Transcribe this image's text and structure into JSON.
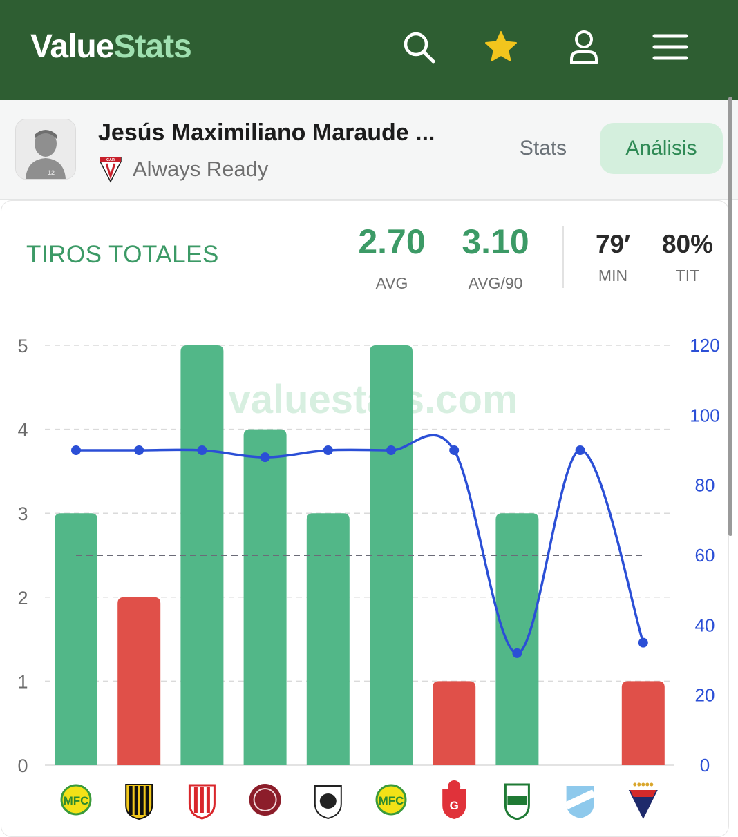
{
  "app": {
    "brand_left": "Value",
    "brand_right": "Stats",
    "icons": [
      "search-icon",
      "star-icon",
      "user-icon",
      "menu-icon"
    ],
    "colors": {
      "header_bg": "#2e5e32",
      "brand_accent": "#9fe0b0",
      "star": "#f2c51d"
    }
  },
  "player": {
    "name": "Jesús Maximiliano Maraude ...",
    "team": "Always Ready",
    "team_crest_text": "CAR",
    "tabs": [
      {
        "label": "Stats",
        "active": false
      },
      {
        "label": "Análisis",
        "active": true
      }
    ]
  },
  "stat": {
    "title": "TIROS TOTALES",
    "avg_value": "2.70",
    "avg_label": "AVG",
    "avg90_value": "3.10",
    "avg90_label": "AVG/90",
    "min_value": "79′",
    "min_label": "MIN",
    "tit_value": "80%",
    "tit_label": "TIT"
  },
  "chart_data": {
    "type": "bar",
    "watermark": "valuestats.com",
    "categories": [
      "Mirassol",
      "The Strongest",
      "Independiente Petrolero",
      "Lanús",
      "Nacional Potosí",
      "Mirassol",
      "Guabirá",
      "Oriente Petrolero",
      "Aurora",
      "LDU Quito"
    ],
    "values": [
      3,
      2,
      5,
      4,
      3,
      5,
      1,
      3,
      0,
      1
    ],
    "bar_status": [
      "over",
      "under",
      "over",
      "over",
      "over",
      "over",
      "under",
      "over",
      "under",
      "under"
    ],
    "line_values": [
      90,
      90,
      90,
      88,
      90,
      90,
      90,
      32,
      90,
      35
    ],
    "threshold": 2.5,
    "ylim": [
      0,
      5
    ],
    "yticks": [
      "0",
      "1",
      "2",
      "3",
      "4",
      "5"
    ],
    "y2lim": [
      0,
      120
    ],
    "y2ticks": [
      "0",
      "20",
      "40",
      "60",
      "80",
      "100",
      "120"
    ],
    "grid": true,
    "colors": {
      "over": "#52b788",
      "under": "#e05049",
      "line": "#2b4fd6",
      "threshold": "#6b6b78"
    }
  }
}
